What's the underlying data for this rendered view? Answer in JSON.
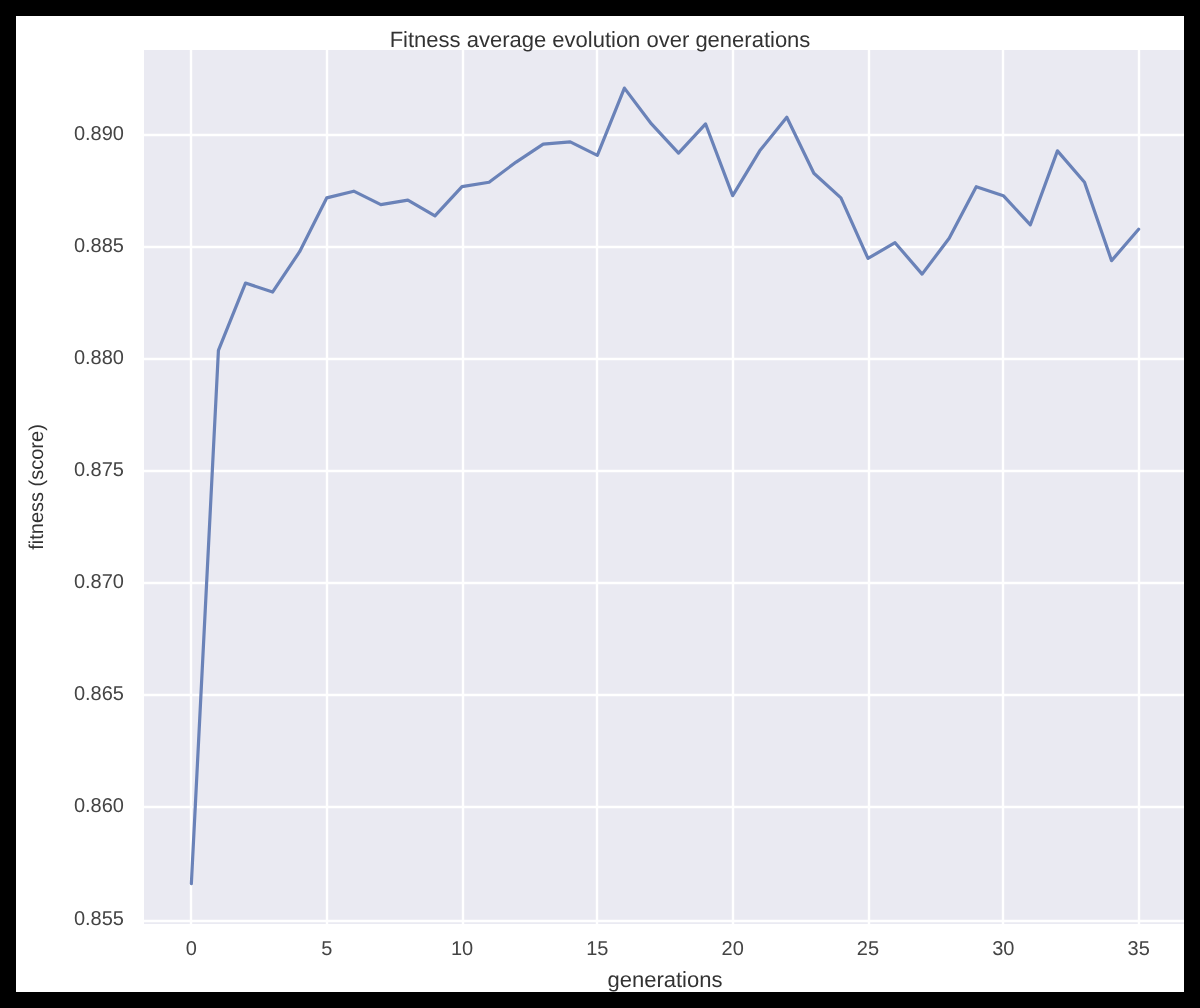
{
  "chart_data": {
    "type": "line",
    "title": "Fitness average evolution over generations",
    "xlabel": "generations",
    "ylabel": "fitness (score)",
    "x": [
      0,
      1,
      2,
      3,
      4,
      5,
      6,
      7,
      8,
      9,
      10,
      11,
      12,
      13,
      14,
      15,
      16,
      17,
      18,
      19,
      20,
      21,
      22,
      23,
      24,
      25,
      26,
      27,
      28,
      29,
      30,
      31,
      32,
      33,
      34,
      35
    ],
    "series": [
      {
        "color": "#6a82b8",
        "values": [
          0.8566,
          0.8804,
          0.8834,
          0.883,
          0.8848,
          0.8872,
          0.8875,
          0.8869,
          0.8871,
          0.8864,
          0.8877,
          0.8879,
          0.8888,
          0.8896,
          0.8897,
          0.8891,
          0.8921,
          0.8905,
          0.8892,
          0.8905,
          0.8873,
          0.8893,
          0.8908,
          0.8883,
          0.8872,
          0.8845,
          0.8852,
          0.8838,
          0.8854,
          0.8877,
          0.8873,
          0.886,
          0.8893,
          0.8879,
          0.8844,
          0.8858
        ]
      }
    ],
    "xlim": [
      -1.75,
      36.75
    ],
    "xticks": [
      0,
      5,
      10,
      15,
      20,
      25,
      30,
      35
    ],
    "ylim": [
      0.8548,
      0.8938
    ],
    "yticks": [
      {
        "value": 0.855,
        "label": "0.855"
      },
      {
        "value": 0.86,
        "label": "0.860"
      },
      {
        "value": 0.865,
        "label": "0.865"
      },
      {
        "value": 0.87,
        "label": "0.870"
      },
      {
        "value": 0.875,
        "label": "0.875"
      },
      {
        "value": 0.88,
        "label": "0.880"
      },
      {
        "value": 0.885,
        "label": "0.885"
      },
      {
        "value": 0.89,
        "label": "0.890"
      }
    ],
    "grid": true,
    "marker": "none",
    "line_style": "solid"
  }
}
